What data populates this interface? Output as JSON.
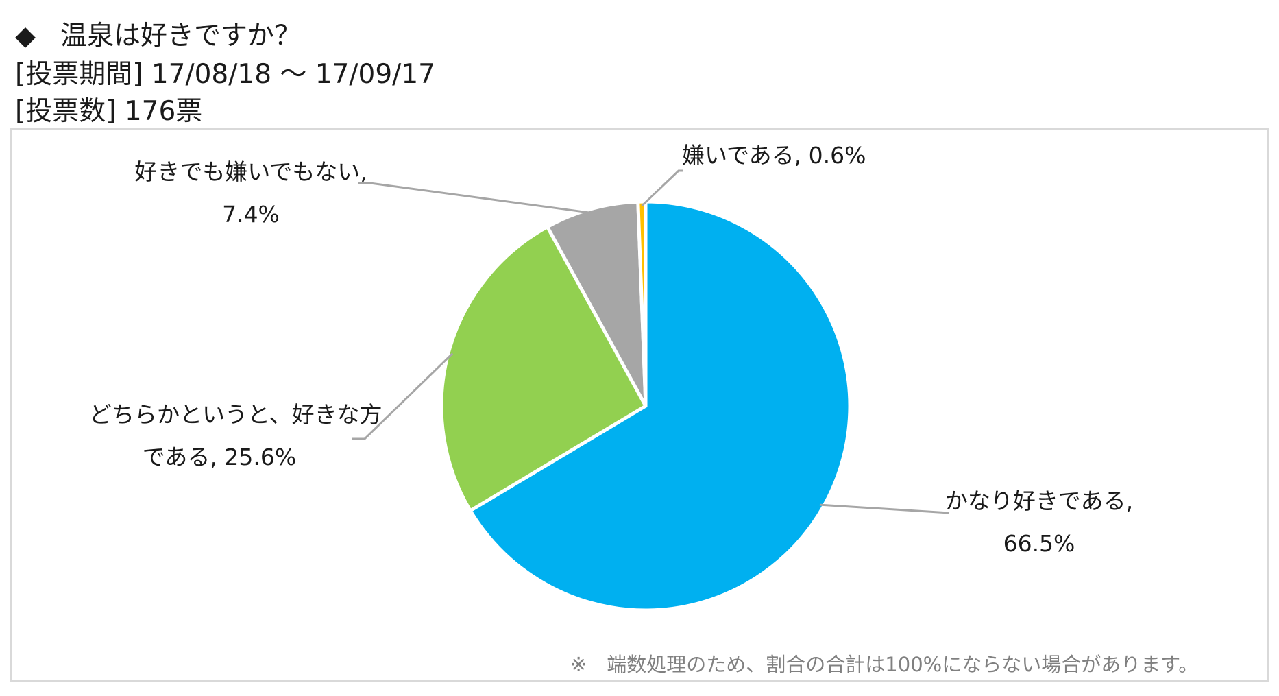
{
  "header": {
    "marker": "◆",
    "question": "温泉は好きですか？",
    "period_label": "[投票期間]",
    "period_value": "17/08/18 ～ 17/09/17",
    "votes_label": "[投票数]",
    "votes_value": "176票"
  },
  "chart_data": {
    "type": "pie",
    "title": "温泉は好きですか？",
    "start_angle_deg": 0,
    "direction": "clockwise",
    "slices": [
      {
        "label": "かなり好きである,",
        "value": 66.5,
        "value_text": "66.5%",
        "color": "#00b0f0"
      },
      {
        "label": "どちらかというと、好きな方",
        "label2": "である,",
        "value": 25.6,
        "value_text": "25.6%",
        "color": "#92d050"
      },
      {
        "label": "好きでも嫌いでもない,",
        "value": 7.4,
        "value_text": "7.4%",
        "color": "#a6a6a6"
      },
      {
        "label": "嫌いである,",
        "value": 0.6,
        "value_text": "0.6%",
        "color": "#ffc000"
      }
    ]
  },
  "footnote": "※　端数処理のため、割合の合計は100%にならない場合があります。"
}
